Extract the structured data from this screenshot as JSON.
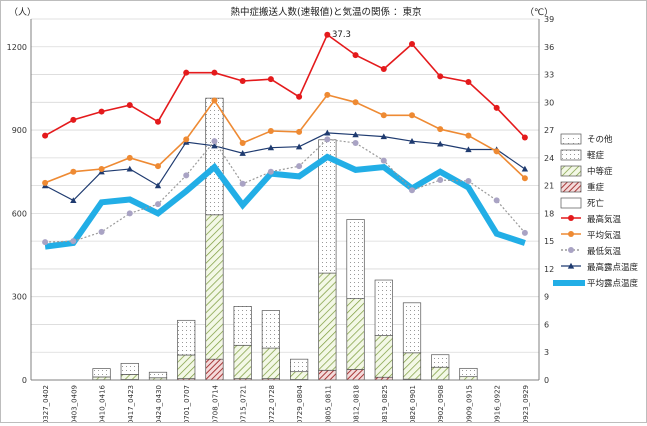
{
  "chart_data": {
    "type": "bar",
    "title": "熱中症搬送人数(速報値)と気温の関係 ：東京",
    "left_unit": "（人）",
    "right_unit": "（℃）",
    "left_ticks": [
      "0",
      "300",
      "600",
      "900",
      "1200"
    ],
    "right_ticks": [
      "0",
      "3",
      "6",
      "9",
      "12",
      "15",
      "18",
      "21",
      "24",
      "27",
      "30",
      "33",
      "36",
      "39"
    ],
    "y_left_lim": [
      0,
      1300
    ],
    "y_right_lim": [
      0,
      39
    ],
    "categories": [
      "0327_0402",
      "0403_0409",
      "0410_0416",
      "0417_0423",
      "0424_0430",
      "0701_0707",
      "0708_0714",
      "0715_0721",
      "0722_0728",
      "0729_0804",
      "0805_0811",
      "0812_0818",
      "0819_0825",
      "0826_0901",
      "0902_0908",
      "0909_0915",
      "0916_0922",
      "0923_0929"
    ],
    "stacked_series": [
      {
        "name": "死亡",
        "color": "#1f3b70",
        "values": [
          0,
          0,
          0,
          0,
          0,
          0,
          0,
          0,
          0,
          0,
          0,
          0,
          0,
          0,
          0,
          0,
          0,
          0
        ]
      },
      {
        "name": "重症",
        "color": "#a83a3a",
        "values": [
          0,
          0,
          1,
          2,
          0,
          5,
          75,
          5,
          5,
          2,
          35,
          38,
          10,
          3,
          1,
          0,
          0,
          0
        ]
      },
      {
        "name": "中等症",
        "color": "#7a9a3a",
        "values": [
          0,
          0,
          10,
          18,
          8,
          85,
          520,
          120,
          110,
          28,
          350,
          255,
          150,
          95,
          45,
          12,
          0,
          0
        ]
      },
      {
        "name": "軽症",
        "color": "#aaaaaa",
        "values": [
          0,
          0,
          30,
          40,
          20,
          125,
          420,
          140,
          135,
          45,
          480,
          285,
          200,
          180,
          45,
          30,
          0,
          0
        ]
      },
      {
        "name": "その他",
        "color": "#999999",
        "values": [
          0,
          0,
          0,
          0,
          0,
          0,
          0,
          0,
          0,
          0,
          0,
          0,
          0,
          0,
          0,
          0,
          0,
          0
        ]
      }
    ],
    "line_series": [
      {
        "name": "最高気温",
        "color": "#e41a1c",
        "values": [
          26.4,
          28.1,
          29.0,
          29.7,
          27.9,
          33.2,
          33.2,
          32.3,
          32.5,
          30.6,
          37.3,
          35.1,
          33.6,
          36.3,
          32.8,
          32.2,
          29.4,
          26.2
        ]
      },
      {
        "name": "平均気温",
        "color": "#ee8a33",
        "values": [
          21.3,
          22.5,
          22.8,
          24.0,
          23.1,
          26.0,
          30.2,
          25.6,
          26.9,
          26.8,
          30.8,
          30.0,
          28.6,
          28.6,
          27.1,
          26.4,
          24.7,
          21.8
        ]
      },
      {
        "name": "最低気温",
        "color": "#a9a3c4",
        "values": [
          14.9,
          15.0,
          16.0,
          18.0,
          19.0,
          22.1,
          25.8,
          21.2,
          22.5,
          23.1,
          26.0,
          25.6,
          23.7,
          20.5,
          21.6,
          21.5,
          19.4,
          15.9
        ]
      },
      {
        "name": "最高露点温度",
        "color": "#1f3b70",
        "values": [
          21.0,
          19.4,
          22.5,
          22.8,
          21.0,
          25.7,
          25.3,
          24.5,
          25.1,
          25.2,
          26.7,
          26.5,
          26.3,
          25.8,
          25.5,
          24.9,
          24.9,
          22.8
        ]
      },
      {
        "name": "平均露点温度",
        "color": "#22aee6",
        "values": [
          14.4,
          14.8,
          19.2,
          19.5,
          18.0,
          20.4,
          23.0,
          18.9,
          22.3,
          22.0,
          24.1,
          22.7,
          23.0,
          20.7,
          22.5,
          20.8,
          15.8,
          14.8
        ]
      }
    ],
    "annotations": [
      {
        "text": "37.3"
      }
    ]
  }
}
